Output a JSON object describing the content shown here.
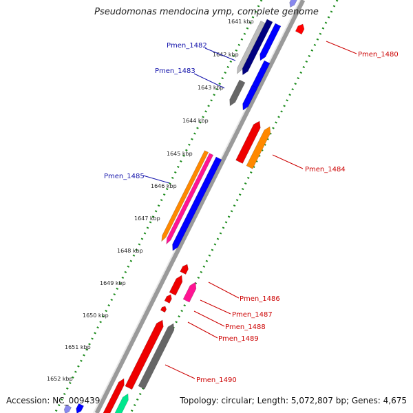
{
  "title": "Pseudomonas mendocina ymp, complete genome",
  "footer": {
    "accession": "Accession: NC_009439",
    "summary": "Topology: circular; Length: 5,072,807 bp; Genes: 4,675"
  },
  "colors": {
    "backbone": "#8a8a8a",
    "tick_outer": "#1a7a1a",
    "tick_inner": "#1a7a1a",
    "label_blue": "#1010aa",
    "label_red": "#cc0000"
  },
  "kbp_labels": [
    "1641 kbp",
    "1642 kbp",
    "1643 kbp",
    "1644 kbp",
    "1645 kbp",
    "1646 kbp",
    "1647 kbp",
    "1648 kbp",
    "1649 kbp",
    "1650 kbp",
    "1651 kbp",
    "1652 kbp"
  ],
  "genes": [
    {
      "label": "Pmen_1480",
      "color": "#ff0000",
      "strand": "reverse"
    },
    {
      "label": "Pmen_1482",
      "color": "#0000ff",
      "strand": "forward"
    },
    {
      "label": "Pmen_1483",
      "color": "#0000ff",
      "strand": "forward"
    },
    {
      "label": "Pmen_1484",
      "color": "#ff8800",
      "strand": "reverse"
    },
    {
      "label": "Pmen_1485",
      "color": "#0000ff",
      "strand": "forward"
    },
    {
      "label": "Pmen_1486",
      "color": "#ff1493",
      "strand": "reverse"
    },
    {
      "label": "Pmen_1487",
      "color": "#ff0000",
      "strand": "reverse"
    },
    {
      "label": "Pmen_1488",
      "color": "#ff0000",
      "strand": "reverse"
    },
    {
      "label": "Pmen_1489",
      "color": "#ff0000",
      "strand": "reverse"
    },
    {
      "label": "Pmen_1490",
      "color": "#666666",
      "strand": "reverse"
    }
  ]
}
